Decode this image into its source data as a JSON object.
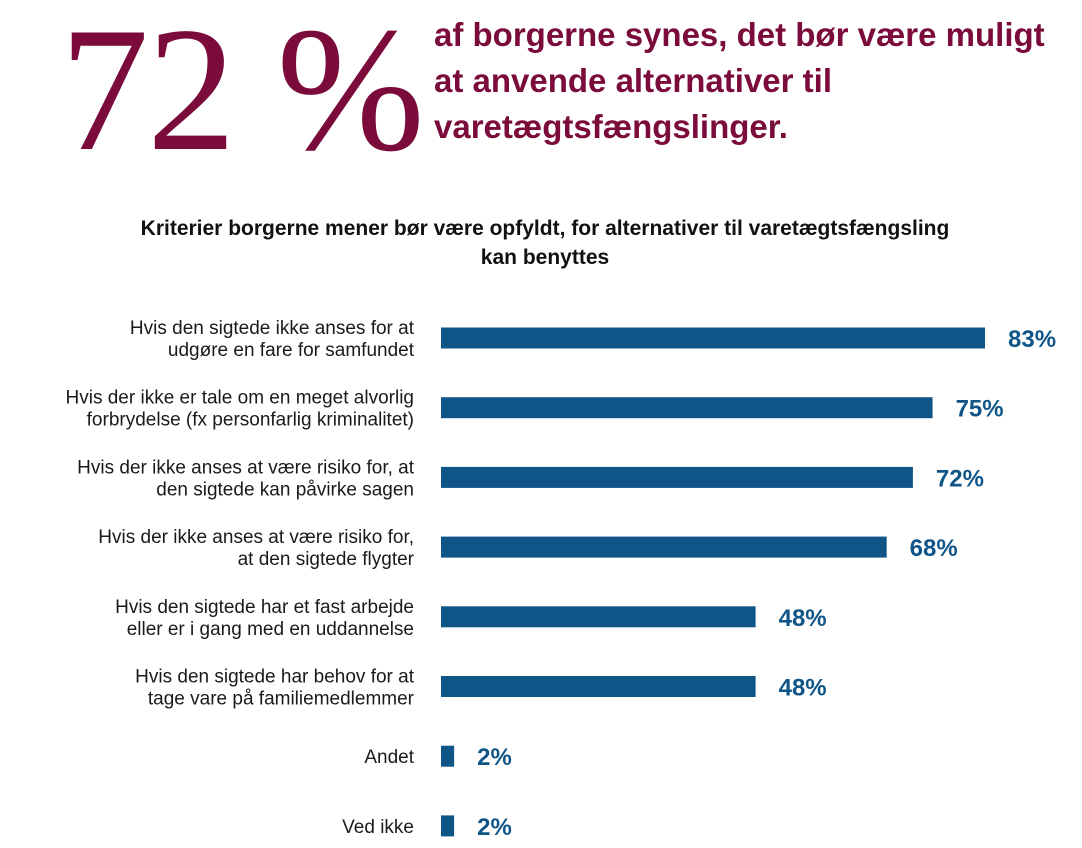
{
  "headline": {
    "big_number": "72 %",
    "text": "af borgerne synes, det bør være muligt at anvende alternativer til varetægtsfængslinger."
  },
  "colors": {
    "accent": "#7a0b3a",
    "bar": "#0f5587",
    "text": "#1a1a1a"
  },
  "chart_data": {
    "type": "bar",
    "orientation": "horizontal",
    "title": "Kriterier borgerne mener bør være opfyldt, for alternativer til varetægtsfængsling kan benyttes",
    "categories": [
      [
        "Hvis den sigtede ikke anses for at",
        "udgøre en fare for samfundet"
      ],
      [
        "Hvis der ikke er tale om en meget alvorlig",
        "forbrydelse (fx personfarlig kriminalitet)"
      ],
      [
        "Hvis der ikke anses at være risiko for, at",
        "den sigtede kan påvirke sagen"
      ],
      [
        "Hvis der ikke anses at være risiko for,",
        "at den sigtede flygter"
      ],
      [
        "Hvis den sigtede har et fast arbejde",
        "eller er i gang med en uddannelse"
      ],
      [
        "Hvis den sigtede har behov for at",
        "tage vare på familiemedlemmer"
      ],
      [
        "Andet"
      ],
      [
        "Ved ikke"
      ]
    ],
    "values": [
      83,
      75,
      72,
      68,
      48,
      48,
      2,
      2
    ],
    "value_labels": [
      "83%",
      "75%",
      "72%",
      "68%",
      "48%",
      "48%",
      "2%",
      "2%"
    ],
    "unit": "%",
    "grid": false,
    "legend": "none"
  }
}
